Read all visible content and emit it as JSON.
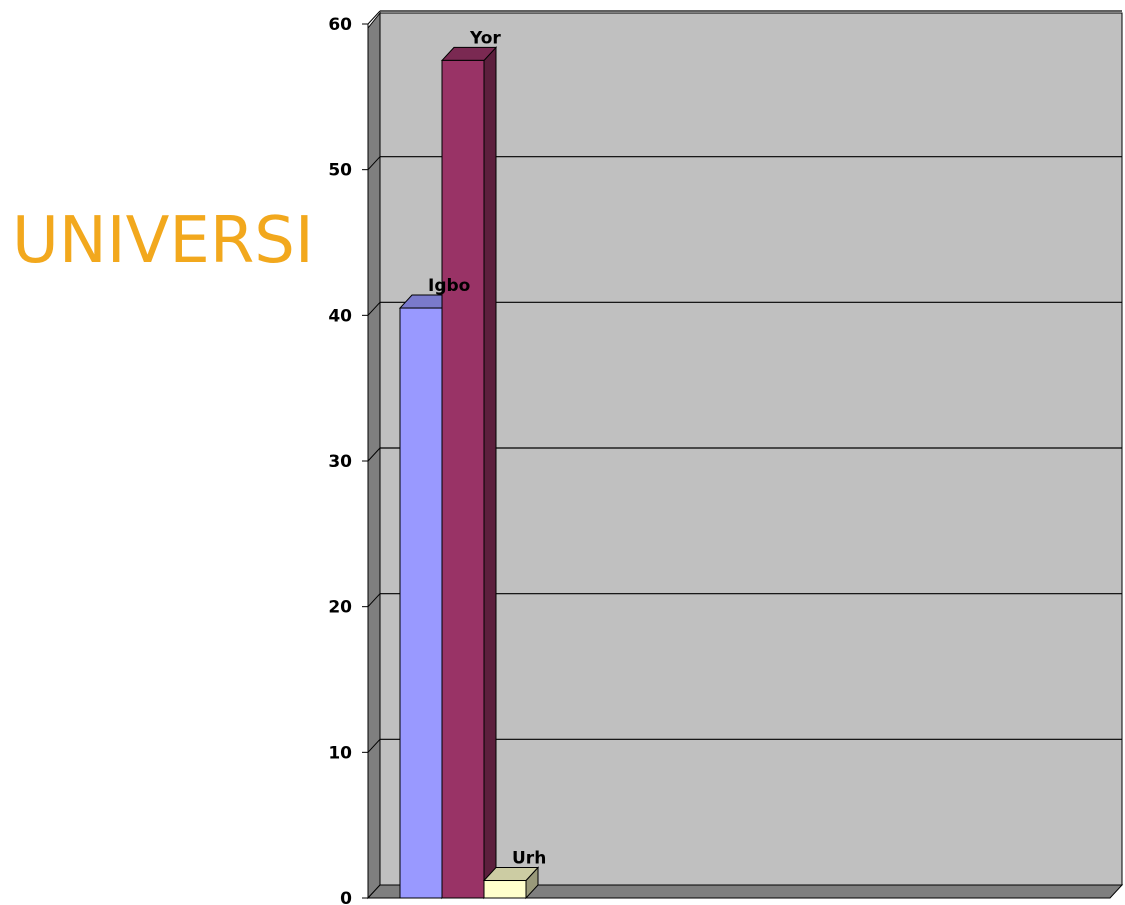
{
  "chart_data": {
    "type": "bar",
    "categories": [
      "Igbo",
      "Yor",
      "Urh"
    ],
    "values": [
      40.5,
      57.5,
      1.2
    ],
    "title": "",
    "xlabel": "",
    "ylabel": "",
    "ylim": [
      0,
      60
    ],
    "yticks": [
      0,
      10,
      20,
      30,
      40,
      50,
      60
    ],
    "grid": true,
    "colors": [
      "#9999ff",
      "#993366",
      "#ffffcc"
    ],
    "plot_background": "#c0c0c0"
  },
  "overlay_text": "UNIVERSI"
}
